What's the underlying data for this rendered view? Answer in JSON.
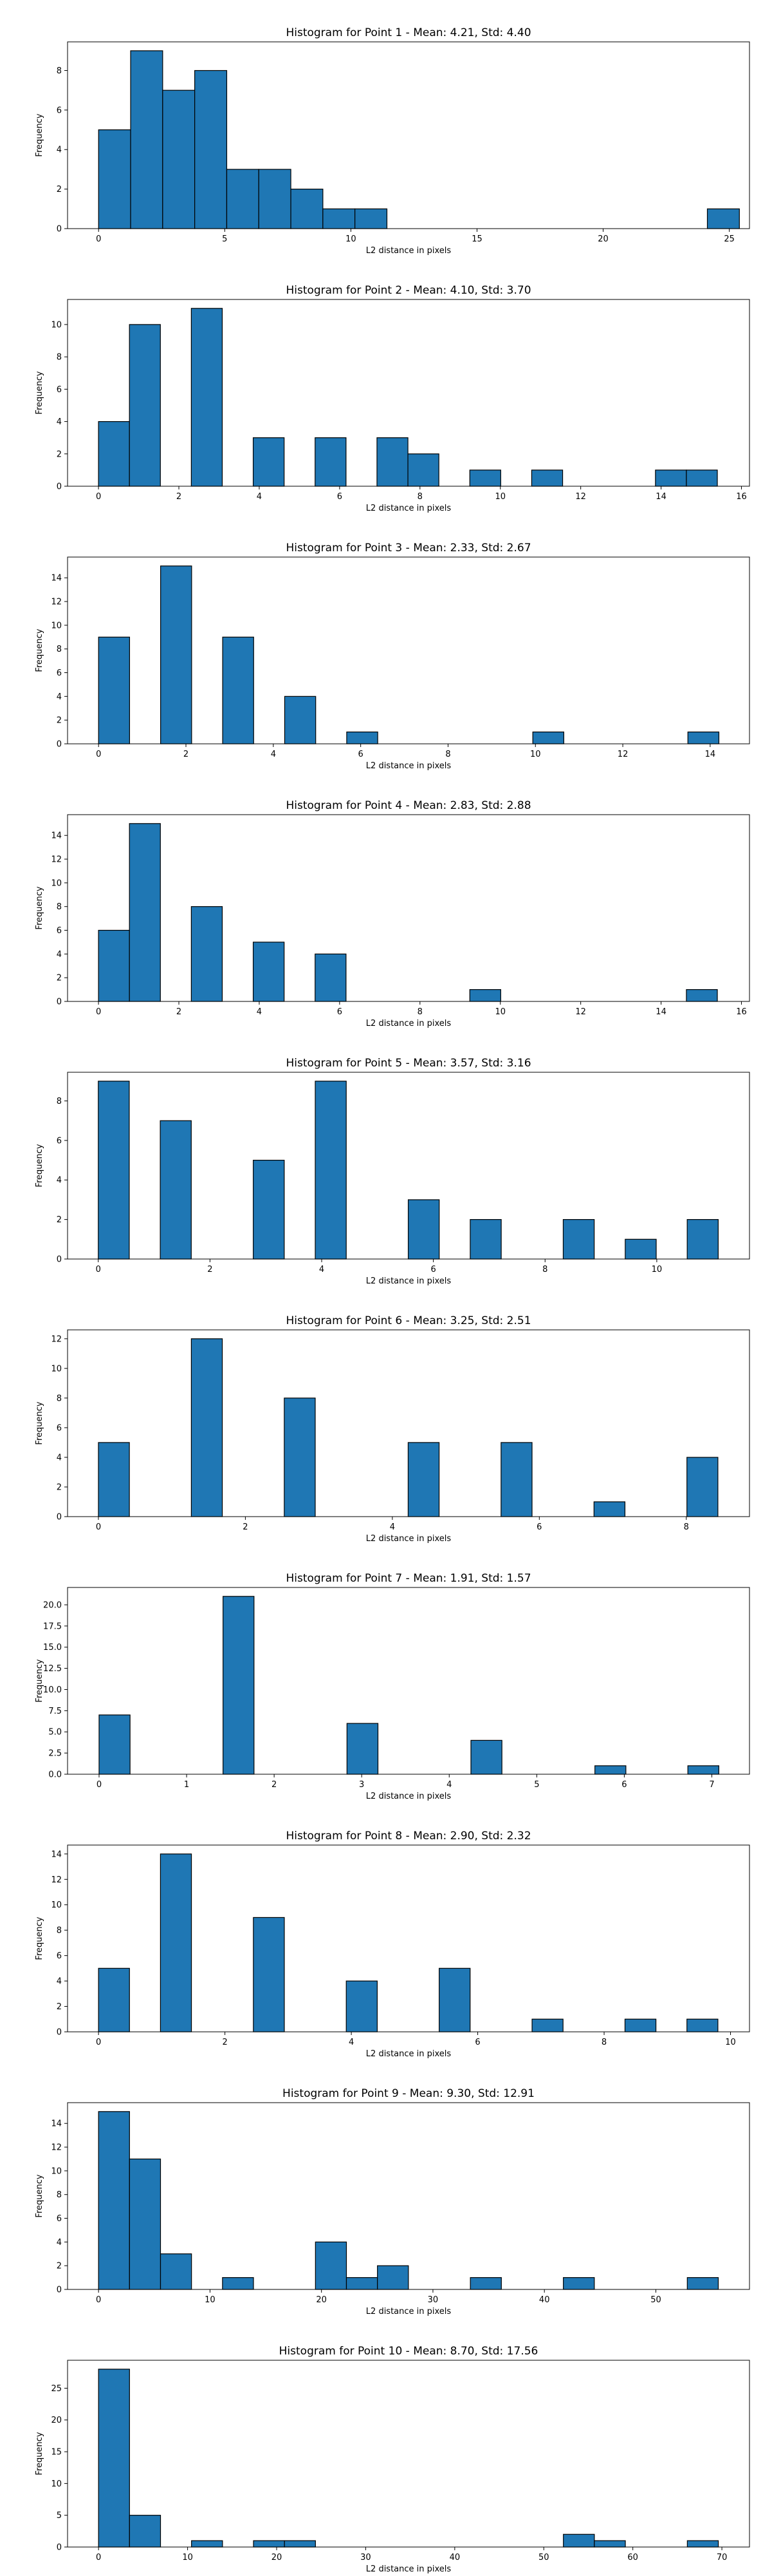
{
  "chart_data": [
    {
      "type": "bar",
      "title": "Histogram for Point 1 - Mean: 4.21, Std: 4.40",
      "xlabel": "L2 distance in pixels",
      "ylabel": "Frequency",
      "xlim": [
        -1.23,
        25.8
      ],
      "ylim": [
        0,
        9.45
      ],
      "xticks": [
        0,
        5,
        10,
        15,
        20,
        25
      ],
      "xtick_labels": [
        "0",
        "5",
        "10",
        "15",
        "20",
        "25"
      ],
      "yticks": [
        0,
        2,
        4,
        6,
        8
      ],
      "ytick_labels": [
        "0",
        "2",
        "4",
        "6",
        "8"
      ],
      "bin_edges": [
        0,
        1.27,
        2.54,
        3.81,
        5.08,
        6.35,
        7.62,
        8.89,
        10.16,
        11.43,
        12.7,
        13.97,
        15.24,
        16.51,
        17.78,
        19.05,
        20.32,
        21.59,
        22.86,
        24.13,
        25.4
      ],
      "counts": [
        5,
        9,
        7,
        8,
        3,
        3,
        2,
        1,
        1,
        0,
        0,
        0,
        0,
        0,
        0,
        0,
        0,
        0,
        0,
        1
      ],
      "colors": {
        "bar": "#1f77b4",
        "edge": "#000000"
      }
    },
    {
      "type": "bar",
      "title": "Histogram for Point 2 - Mean: 4.10, Std: 3.70",
      "xlabel": "L2 distance in pixels",
      "ylabel": "Frequency",
      "xlim": [
        -0.77,
        16.2
      ],
      "ylim": [
        0,
        11.55
      ],
      "xticks": [
        0,
        2,
        4,
        6,
        8,
        10,
        12,
        14,
        16
      ],
      "xtick_labels": [
        "0",
        "2",
        "4",
        "6",
        "8",
        "10",
        "12",
        "14",
        "16"
      ],
      "yticks": [
        0,
        2,
        4,
        6,
        8,
        10
      ],
      "ytick_labels": [
        "0",
        "2",
        "4",
        "6",
        "8",
        "10"
      ],
      "bin_edges": [
        0,
        0.77,
        1.54,
        2.31,
        3.08,
        3.85,
        4.62,
        5.39,
        6.16,
        6.93,
        7.7,
        8.47,
        9.24,
        10.01,
        10.78,
        11.55,
        12.32,
        13.09,
        13.86,
        14.63,
        15.4
      ],
      "counts": [
        4,
        10,
        0,
        11,
        0,
        3,
        0,
        3,
        0,
        3,
        2,
        0,
        1,
        0,
        1,
        0,
        0,
        0,
        1,
        1
      ],
      "colors": {
        "bar": "#1f77b4",
        "edge": "#000000"
      }
    },
    {
      "type": "bar",
      "title": "Histogram for Point 3 - Mean: 2.33, Std: 2.67",
      "xlabel": "L2 distance in pixels",
      "ylabel": "Frequency",
      "xlim": [
        -0.71,
        14.9
      ],
      "ylim": [
        0,
        15.75
      ],
      "xticks": [
        0,
        2,
        4,
        6,
        8,
        10,
        12,
        14
      ],
      "xtick_labels": [
        "0",
        "2",
        "4",
        "6",
        "8",
        "10",
        "12",
        "14"
      ],
      "yticks": [
        0,
        2,
        4,
        6,
        8,
        10,
        12,
        14
      ],
      "ytick_labels": [
        "0",
        "2",
        "4",
        "6",
        "8",
        "10",
        "12",
        "14"
      ],
      "bin_edges": [
        0,
        0.71,
        1.42,
        2.13,
        2.84,
        3.55,
        4.26,
        4.97,
        5.68,
        6.39,
        7.1,
        7.81,
        8.52,
        9.23,
        9.94,
        10.65,
        11.36,
        12.07,
        12.78,
        13.49,
        14.2
      ],
      "counts": [
        9,
        0,
        15,
        0,
        9,
        0,
        4,
        0,
        1,
        0,
        0,
        0,
        0,
        0,
        1,
        0,
        0,
        0,
        0,
        1
      ],
      "colors": {
        "bar": "#1f77b4",
        "edge": "#000000"
      }
    },
    {
      "type": "bar",
      "title": "Histogram for Point 4 - Mean: 2.83, Std: 2.88",
      "xlabel": "L2 distance in pixels",
      "ylabel": "Frequency",
      "xlim": [
        -0.77,
        16.2
      ],
      "ylim": [
        0,
        15.75
      ],
      "xticks": [
        0,
        2,
        4,
        6,
        8,
        10,
        12,
        14,
        16
      ],
      "xtick_labels": [
        "0",
        "2",
        "4",
        "6",
        "8",
        "10",
        "12",
        "14",
        "16"
      ],
      "yticks": [
        0,
        2,
        4,
        6,
        8,
        10,
        12,
        14
      ],
      "ytick_labels": [
        "0",
        "2",
        "4",
        "6",
        "8",
        "10",
        "12",
        "14"
      ],
      "bin_edges": [
        0,
        0.77,
        1.54,
        2.31,
        3.08,
        3.85,
        4.62,
        5.39,
        6.16,
        6.93,
        7.7,
        8.47,
        9.24,
        10.01,
        10.78,
        11.55,
        12.32,
        13.09,
        13.86,
        14.63,
        15.4
      ],
      "counts": [
        6,
        15,
        0,
        8,
        0,
        5,
        0,
        4,
        0,
        0,
        0,
        0,
        1,
        0,
        0,
        0,
        0,
        0,
        0,
        1
      ],
      "colors": {
        "bar": "#1f77b4",
        "edge": "#000000"
      }
    },
    {
      "type": "bar",
      "title": "Histogram for Point 5 - Mean: 3.57, Std: 3.16",
      "xlabel": "L2 distance in pixels",
      "ylabel": "Frequency",
      "xlim": [
        -0.55,
        11.66
      ],
      "ylim": [
        0,
        9.45
      ],
      "xticks": [
        0,
        2,
        4,
        6,
        8,
        10
      ],
      "xtick_labels": [
        "0",
        "2",
        "4",
        "6",
        "8",
        "10"
      ],
      "yticks": [
        0,
        2,
        4,
        6,
        8
      ],
      "ytick_labels": [
        "0",
        "2",
        "4",
        "6",
        "8"
      ],
      "bin_edges": [
        0,
        0.555,
        1.11,
        1.665,
        2.22,
        2.775,
        3.33,
        3.885,
        4.44,
        4.995,
        5.55,
        6.105,
        6.66,
        7.215,
        7.77,
        8.325,
        8.88,
        9.435,
        9.99,
        10.545,
        11.1
      ],
      "counts": [
        9,
        0,
        7,
        0,
        0,
        5,
        0,
        9,
        0,
        0,
        3,
        0,
        2,
        0,
        0,
        2,
        0,
        1,
        0,
        2
      ],
      "colors": {
        "bar": "#1f77b4",
        "edge": "#000000"
      }
    },
    {
      "type": "bar",
      "title": "Histogram for Point 6 - Mean: 3.25, Std: 2.51",
      "xlabel": "L2 distance in pixels",
      "ylabel": "Frequency",
      "xlim": [
        -0.42,
        8.86
      ],
      "ylim": [
        0,
        12.6
      ],
      "xticks": [
        0,
        2,
        4,
        6,
        8
      ],
      "xtick_labels": [
        "0",
        "2",
        "4",
        "6",
        "8"
      ],
      "yticks": [
        0,
        2,
        4,
        6,
        8,
        10,
        12
      ],
      "ytick_labels": [
        "0",
        "2",
        "4",
        "6",
        "8",
        "10",
        "12"
      ],
      "bin_edges": [
        0,
        0.4215,
        0.843,
        1.2645,
        1.686,
        2.1075,
        2.529,
        2.9505,
        3.372,
        3.7935,
        4.215,
        4.6365,
        5.058,
        5.4795,
        5.901,
        6.3225,
        6.744,
        7.1655,
        7.587,
        8.0085,
        8.43
      ],
      "counts": [
        5,
        0,
        0,
        12,
        0,
        0,
        8,
        0,
        0,
        0,
        5,
        0,
        0,
        5,
        0,
        0,
        1,
        0,
        0,
        4
      ],
      "colors": {
        "bar": "#1f77b4",
        "edge": "#000000"
      }
    },
    {
      "type": "bar",
      "title": "Histogram for Point 7 - Mean: 1.91, Std: 1.57",
      "xlabel": "L2 distance in pixels",
      "ylabel": "Frequency",
      "xlim": [
        -0.36,
        7.43
      ],
      "ylim": [
        0,
        22.05
      ],
      "xticks": [
        0,
        1,
        2,
        3,
        4,
        5,
        6,
        7
      ],
      "xtick_labels": [
        "0",
        "1",
        "2",
        "3",
        "4",
        "5",
        "6",
        "7"
      ],
      "yticks": [
        0,
        2.5,
        5,
        7.5,
        10,
        12.5,
        15,
        17.5,
        20
      ],
      "ytick_labels": [
        "0.0",
        "2.5",
        "5.0",
        "7.5",
        "10.0",
        "12.5",
        "15.0",
        "17.5",
        "20.0"
      ],
      "bin_edges": [
        0,
        0.354,
        0.708,
        1.062,
        1.416,
        1.77,
        2.124,
        2.478,
        2.832,
        3.186,
        3.54,
        3.894,
        4.248,
        4.602,
        4.956,
        5.31,
        5.664,
        6.018,
        6.372,
        6.726,
        7.08
      ],
      "counts": [
        7,
        0,
        0,
        0,
        21,
        0,
        0,
        0,
        6,
        0,
        0,
        0,
        4,
        0,
        0,
        0,
        1,
        0,
        0,
        1
      ],
      "colors": {
        "bar": "#1f77b4",
        "edge": "#000000"
      }
    },
    {
      "type": "bar",
      "title": "Histogram for Point 8 - Mean: 2.90, Std: 2.32",
      "xlabel": "L2 distance in pixels",
      "ylabel": "Frequency",
      "xlim": [
        -0.49,
        10.3
      ],
      "ylim": [
        0,
        14.7
      ],
      "xticks": [
        0,
        2,
        4,
        6,
        8,
        10
      ],
      "xtick_labels": [
        "0",
        "2",
        "4",
        "6",
        "8",
        "10"
      ],
      "yticks": [
        0,
        2,
        4,
        6,
        8,
        10,
        12,
        14
      ],
      "ytick_labels": [
        "0",
        "2",
        "4",
        "6",
        "8",
        "10",
        "12",
        "14"
      ],
      "bin_edges": [
        0,
        0.49,
        0.98,
        1.47,
        1.96,
        2.45,
        2.94,
        3.43,
        3.92,
        4.41,
        4.9,
        5.39,
        5.88,
        6.37,
        6.86,
        7.35,
        7.84,
        8.33,
        8.82,
        9.31,
        9.8
      ],
      "counts": [
        5,
        0,
        14,
        0,
        0,
        9,
        0,
        0,
        4,
        0,
        0,
        5,
        0,
        0,
        1,
        0,
        0,
        1,
        0,
        1
      ],
      "colors": {
        "bar": "#1f77b4",
        "edge": "#000000"
      }
    },
    {
      "type": "bar",
      "title": "Histogram for Point 9 - Mean: 9.30, Std: 12.91",
      "xlabel": "L2 distance in pixels",
      "ylabel": "Frequency",
      "xlim": [
        -2.78,
        58.4
      ],
      "ylim": [
        0,
        15.75
      ],
      "xticks": [
        0,
        10,
        20,
        30,
        40,
        50
      ],
      "xtick_labels": [
        "0",
        "10",
        "20",
        "30",
        "40",
        "50"
      ],
      "yticks": [
        0,
        2,
        4,
        6,
        8,
        10,
        12,
        14
      ],
      "ytick_labels": [
        "0",
        "2",
        "4",
        "6",
        "8",
        "10",
        "12",
        "14"
      ],
      "bin_edges": [
        0,
        2.78,
        5.56,
        8.34,
        11.12,
        13.9,
        16.68,
        19.46,
        22.24,
        25.02,
        27.8,
        30.58,
        33.36,
        36.14,
        38.92,
        41.7,
        44.48,
        47.26,
        50.04,
        52.82,
        55.6
      ],
      "counts": [
        15,
        11,
        3,
        0,
        1,
        0,
        0,
        4,
        1,
        2,
        0,
        0,
        1,
        0,
        0,
        1,
        0,
        0,
        0,
        1
      ],
      "colors": {
        "bar": "#1f77b4",
        "edge": "#000000"
      }
    },
    {
      "type": "bar",
      "title": "Histogram for Point 10 - Mean: 8.70, Std: 17.56",
      "xlabel": "L2 distance in pixels",
      "ylabel": "Frequency",
      "xlim": [
        -3.48,
        73.1
      ],
      "ylim": [
        0,
        29.4
      ],
      "xticks": [
        0,
        10,
        20,
        30,
        40,
        50,
        60,
        70
      ],
      "xtick_labels": [
        "0",
        "10",
        "20",
        "30",
        "40",
        "50",
        "60",
        "70"
      ],
      "yticks": [
        0,
        5,
        10,
        15,
        20,
        25
      ],
      "ytick_labels": [
        "0",
        "5",
        "10",
        "15",
        "20",
        "25"
      ],
      "bin_edges": [
        0,
        3.48,
        6.96,
        10.44,
        13.92,
        17.4,
        20.88,
        24.36,
        27.84,
        31.32,
        34.8,
        38.28,
        41.76,
        45.24,
        48.72,
        52.2,
        55.68,
        59.16,
        62.64,
        66.12,
        69.6
      ],
      "counts": [
        28,
        5,
        0,
        1,
        0,
        1,
        1,
        0,
        0,
        0,
        0,
        0,
        0,
        0,
        0,
        2,
        1,
        0,
        0,
        1
      ],
      "colors": {
        "bar": "#1f77b4",
        "edge": "#000000"
      }
    }
  ]
}
